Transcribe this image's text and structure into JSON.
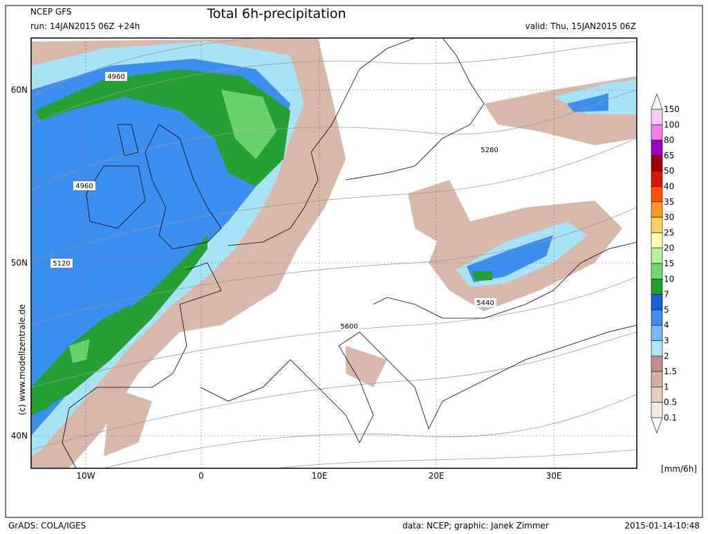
{
  "header": {
    "model": "NCEP GFS",
    "run": "run: 14JAN2015 06Z +24h",
    "title": "Total 6h-precipitation",
    "valid": "valid: Thu, 15JAN2015 06Z"
  },
  "map": {
    "lon_labels": [
      "10W",
      "0",
      "10E",
      "20E",
      "30E"
    ],
    "lat_labels": [
      "60N",
      "50N",
      "40N"
    ],
    "contour_labels": [
      "4960",
      "4960",
      "5120",
      "5280",
      "5440",
      "5600"
    ],
    "watermark": "(c)  www.modellzentrale.de"
  },
  "legend": {
    "labels": [
      "150",
      "100",
      "80",
      "65",
      "50",
      "40",
      "35",
      "30",
      "25",
      "20",
      "15",
      "10",
      "7",
      "5",
      "4",
      "3",
      "2",
      "1.5",
      "1",
      "0.5",
      "0.1"
    ],
    "colors": [
      "#ffffff",
      "#ffc8ff",
      "#f080f0",
      "#a000c0",
      "#a00000",
      "#d81800",
      "#ff5000",
      "#ff9820",
      "#ffd060",
      "#ffffb0",
      "#b8f0a0",
      "#70d868",
      "#20a030",
      "#1860d0",
      "#3c8ef0",
      "#78b8f8",
      "#b0e4f8",
      "#c09088",
      "#d4b0a4",
      "#e6cec2",
      "#f6e8e0",
      "#ffffff"
    ],
    "unit": "[mm/6h]"
  },
  "footer": {
    "left": "GrADS: COLA/IGES",
    "center": "data: NCEP; graphic: Janek Zimmer",
    "right": "2015-01-14-10:48"
  }
}
